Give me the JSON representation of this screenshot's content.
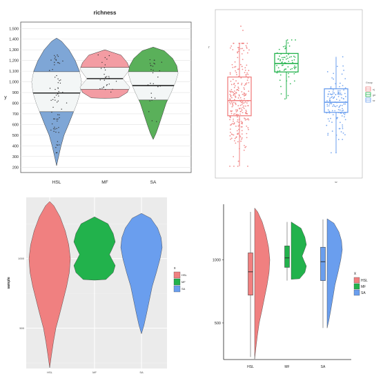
{
  "colors": {
    "HSL": "#f08080",
    "MF": "#22b24c",
    "SA": "#6a9eee",
    "topleft_violin": "#7ea6d6",
    "topleft_violin_MF": "#f39ca3",
    "topleft_violin_SA": "#5ab05a"
  },
  "chart_data": [
    {
      "type": "violin",
      "title": "richness",
      "ylabel": "y",
      "xlabel": "",
      "categories": [
        "HSL",
        "MF",
        "SA"
      ],
      "yticks": [
        "200",
        "300",
        "400",
        "500",
        "600",
        "700",
        "800",
        "900",
        "1,000",
        "1,100",
        "1,200",
        "1,300",
        "1,400",
        "1,500"
      ],
      "ylim": [
        150,
        1560
      ],
      "grid": true,
      "quartiles": [
        {
          "q1": 720,
          "median": 895,
          "q3": 1095
        },
        {
          "q1": 930,
          "median": 1030,
          "q3": 1135
        },
        {
          "q1": 830,
          "median": 965,
          "q3": 1095
        }
      ],
      "range": [
        [
          215,
          1410
        ],
        [
          845,
          1300
        ],
        [
          460,
          1325
        ]
      ]
    },
    {
      "type": "box+jitter",
      "ylabel": "r",
      "legend": {
        "title": "Group",
        "entries": [
          "nj",
          "gd",
          "sz"
        ]
      },
      "legend_placement": "right",
      "categories": [
        "",
        "",
        "sz"
      ],
      "ylim": [
        0,
        1
      ],
      "boxes": [
        {
          "q1": 0.37,
          "median": 0.46,
          "q3": 0.6,
          "whisker_low": 0.07,
          "whisker_high": 0.8
        },
        {
          "q1": 0.63,
          "median": 0.68,
          "q3": 0.74,
          "whisker_low": 0.47,
          "whisker_high": 0.82
        },
        {
          "q1": 0.39,
          "median": 0.45,
          "q3": 0.53,
          "whisker_low": 0.15,
          "whisker_high": 0.72
        }
      ]
    },
    {
      "type": "violin",
      "ylabel": "sample",
      "xlabel": "",
      "categories": [
        "HSL",
        "MF",
        "SA"
      ],
      "yticks": [
        "500",
        "1000"
      ],
      "ylim": [
        210,
        1440
      ],
      "legend": {
        "title": "x",
        "entries": [
          "HSL",
          "MF",
          "SA"
        ]
      },
      "legend_placement": "right",
      "grid": true
    },
    {
      "type": "half-violin+box",
      "categories": [
        "HSL",
        "MF",
        "SA"
      ],
      "yticks": [
        "500",
        "1000"
      ],
      "ylim": [
        210,
        1440
      ],
      "legend": {
        "title": "x",
        "entries": [
          "HSL",
          "MF",
          "SA"
        ]
      },
      "legend_placement": "right",
      "boxes": [
        {
          "q1": 720,
          "median": 905,
          "q3": 1055,
          "whisker_low": 230,
          "whisker_high": 1380
        },
        {
          "q1": 940,
          "median": 1015,
          "q3": 1110,
          "whisker_low": 835,
          "whisker_high": 1300
        },
        {
          "q1": 835,
          "median": 985,
          "q3": 1100,
          "whisker_low": 460,
          "whisker_high": 1320
        }
      ]
    }
  ]
}
